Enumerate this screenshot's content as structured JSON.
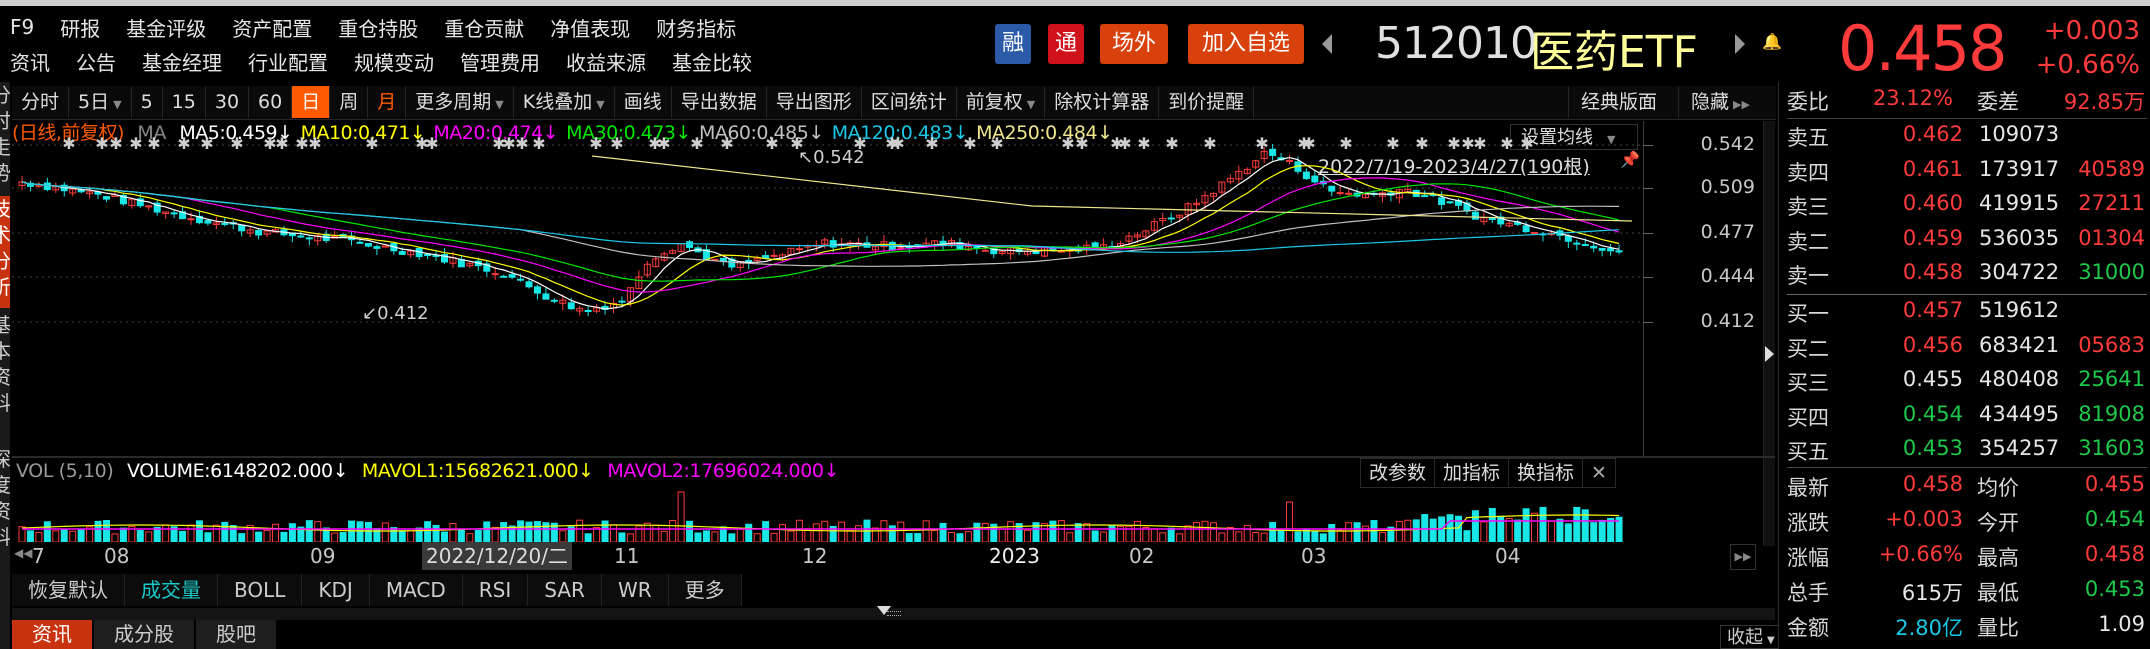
{
  "header": {
    "nav_row1": [
      "F9",
      "研报",
      "基金评级",
      "资产配置",
      "重仓持股",
      "重仓贡献",
      "净值表现",
      "财务指标"
    ],
    "nav_row2": [
      "资讯",
      "公告",
      "基金经理",
      "行业配置",
      "规模变动",
      "管理费用",
      "收益来源",
      "基金比较"
    ],
    "badges": {
      "rong": "融",
      "tong": "通",
      "changwai": "场外",
      "add_watchlist": "加入自选"
    },
    "code": "512010",
    "name": "医药ETF",
    "price": "0.458",
    "change": "+0.003",
    "change_pct": "+0.66%",
    "colors": {
      "up": "#ff3b3b",
      "down": "#1ec84a",
      "accent": "#ff5a00",
      "name": "#ffff99"
    }
  },
  "vertical_tabs": [
    "分时走势",
    "技术分析",
    "基本资料",
    "深度资料"
  ],
  "toolbar": {
    "items": [
      "分时",
      "5日",
      "5",
      "15",
      "30",
      "60",
      "日",
      "周",
      "月",
      "更多周期",
      "K线叠加",
      "画线",
      "导出数据",
      "导出图形",
      "区间统计",
      "前复权",
      "除权计算器",
      "到价提醒"
    ],
    "active": "日",
    "classic": "经典版面",
    "hide": "隐藏"
  },
  "chart": {
    "mode": "(日线,前复权)",
    "ma_label": "MA",
    "ma": [
      {
        "label": "MA5:0.459↓",
        "color": "#ffffff"
      },
      {
        "label": "MA10:0.471↓",
        "color": "#ffff00"
      },
      {
        "label": "MA20:0.474↓",
        "color": "#ff00ff"
      },
      {
        "label": "MA30:0.473↓",
        "color": "#00e600"
      },
      {
        "label": "MA60:0.485↓",
        "color": "#c0c0c0"
      },
      {
        "label": "MA120:0.483↓",
        "color": "#19c8e6"
      },
      {
        "label": "MA250:0.484↓",
        "color": "#f0e68c"
      }
    ],
    "set_ma": "设置均线",
    "range": "2022/7/19-2023/4/27(190根)",
    "high_label": "0.542",
    "low_label": "0.412",
    "yticks": [
      "0.542",
      "0.509",
      "0.477",
      "0.444",
      "0.412"
    ]
  },
  "volume": {
    "title": "VOL (5,10)",
    "volume": "VOLUME:6148202.000↓",
    "mavol1": "MAVOL1:15682621.000↓",
    "mavol2": "MAVOL2:17696024.000↓",
    "buttons": [
      "改参数",
      "加指标",
      "换指标"
    ],
    "close": "✕"
  },
  "xaxis": {
    "labels": [
      {
        "text": "7",
        "x": 20
      },
      {
        "text": "08",
        "x": 92
      },
      {
        "text": "09",
        "x": 298
      },
      {
        "text": "11",
        "x": 602
      },
      {
        "text": "12",
        "x": 790
      },
      {
        "text": "2023",
        "x": 977
      },
      {
        "text": "02",
        "x": 1117
      },
      {
        "text": "03",
        "x": 1289
      },
      {
        "text": "04",
        "x": 1483
      }
    ],
    "cursor_date": "2022/12/20/二"
  },
  "indicator_tabs": [
    "恢复默认",
    "成交量",
    "BOLL",
    "KDJ",
    "MACD",
    "RSI",
    "SAR",
    "WR",
    "更多"
  ],
  "indicator_active": "成交量",
  "bottom_tabs": [
    "资讯",
    "成分股",
    "股吧"
  ],
  "collapse": "收起",
  "orderbook": {
    "weibi_label": "委比",
    "weibi": "23.12%",
    "weicha_label": "委差",
    "weicha": "92.85万",
    "asks": [
      {
        "label": "卖五",
        "price": "0.462",
        "vol": "109073",
        "delta": "",
        "pc": "red",
        "dc": "red"
      },
      {
        "label": "卖四",
        "price": "0.461",
        "vol": "173917",
        "delta": "40589",
        "pc": "red",
        "dc": "red"
      },
      {
        "label": "卖三",
        "price": "0.460",
        "vol": "419915",
        "delta": "27211",
        "pc": "red",
        "dc": "red"
      },
      {
        "label": "卖二",
        "price": "0.459",
        "vol": "536035",
        "delta": "01304",
        "pc": "red",
        "dc": "red"
      },
      {
        "label": "卖一",
        "price": "0.458",
        "vol": "304722",
        "delta": "31000",
        "pc": "red",
        "dc": "green"
      }
    ],
    "bids": [
      {
        "label": "买一",
        "price": "0.457",
        "vol": "519612",
        "delta": "",
        "pc": "red",
        "dc": "red"
      },
      {
        "label": "买二",
        "price": "0.456",
        "vol": "683421",
        "delta": "05683",
        "pc": "red",
        "dc": "red"
      },
      {
        "label": "买三",
        "price": "0.455",
        "vol": "480408",
        "delta": "25641",
        "pc": "white",
        "dc": "green"
      },
      {
        "label": "买四",
        "price": "0.454",
        "vol": "434495",
        "delta": "81908",
        "pc": "green",
        "dc": "green"
      },
      {
        "label": "买五",
        "price": "0.453",
        "vol": "354257",
        "delta": "31603",
        "pc": "green",
        "dc": "green"
      }
    ],
    "stats": [
      {
        "l1": "最新",
        "v1": "0.458",
        "c1": "red",
        "l2": "均价",
        "v2": "0.455",
        "c2": "red"
      },
      {
        "l1": "涨跌",
        "v1": "+0.003",
        "c1": "red",
        "l2": "今开",
        "v2": "0.454",
        "c2": "green"
      },
      {
        "l1": "涨幅",
        "v1": "+0.66%",
        "c1": "red",
        "l2": "最高",
        "v2": "0.458",
        "c2": "red"
      },
      {
        "l1": "总手",
        "v1": "615万",
        "c1": "white",
        "l2": "最低",
        "v2": "0.453",
        "c2": "green"
      },
      {
        "l1": "金额",
        "v1": "2.80亿",
        "c1": "cyan",
        "l2": "量比",
        "v2": "1.09",
        "c2": "white"
      }
    ]
  }
}
